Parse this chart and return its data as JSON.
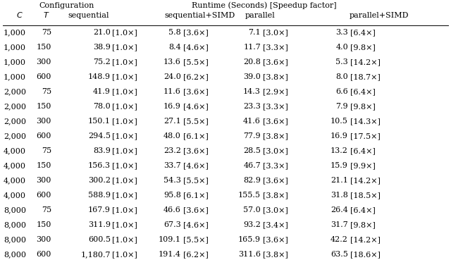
{
  "col_header1": "Configuration",
  "col_header2": "Runtime (Seconds) [Speedup factor]",
  "subheaders_italic": [
    "C",
    "T"
  ],
  "subheaders_normal": [
    "sequential",
    "sequential+SIMD",
    "parallel",
    "parallel+SIMD"
  ],
  "rows": [
    [
      "1,000",
      "75",
      "21.0",
      "1.0×",
      "5.8",
      "3.6×",
      "7.1",
      "3.0×",
      "3.3",
      "6.4×"
    ],
    [
      "1,000",
      "150",
      "38.9",
      "1.0×",
      "8.4",
      "4.6×",
      "11.7",
      "3.3×",
      "4.0",
      "9.8×"
    ],
    [
      "1,000",
      "300",
      "75.2",
      "1.0×",
      "13.6",
      "5.5×",
      "20.8",
      "3.6×",
      "5.3",
      "14.2×"
    ],
    [
      "1,000",
      "600",
      "148.9",
      "1.0×",
      "24.0",
      "6.2×",
      "39.0",
      "3.8×",
      "8.0",
      "18.7×"
    ],
    [
      "2,000",
      "75",
      "41.9",
      "1.0×",
      "11.6",
      "3.6×",
      "14.3",
      "2.9×",
      "6.6",
      "6.4×"
    ],
    [
      "2,000",
      "150",
      "78.0",
      "1.0×",
      "16.9",
      "4.6×",
      "23.3",
      "3.3×",
      "7.9",
      "9.8×"
    ],
    [
      "2,000",
      "300",
      "150.1",
      "1.0×",
      "27.1",
      "5.5×",
      "41.6",
      "3.6×",
      "10.5",
      "14.3×"
    ],
    [
      "2,000",
      "600",
      "294.5",
      "1.0×",
      "48.0",
      "6.1×",
      "77.9",
      "3.8×",
      "16.9",
      "17.5×"
    ],
    [
      "4,000",
      "75",
      "83.9",
      "1.0×",
      "23.2",
      "3.6×",
      "28.5",
      "3.0×",
      "13.2",
      "6.4×"
    ],
    [
      "4,000",
      "150",
      "156.3",
      "1.0×",
      "33.7",
      "4.6×",
      "46.7",
      "3.3×",
      "15.9",
      "9.9×"
    ],
    [
      "4,000",
      "300",
      "300.2",
      "1.0×",
      "54.3",
      "5.5×",
      "82.9",
      "3.6×",
      "21.1",
      "14.2×"
    ],
    [
      "4,000",
      "600",
      "588.9",
      "1.0×",
      "95.8",
      "6.1×",
      "155.5",
      "3.8×",
      "31.8",
      "18.5×"
    ],
    [
      "8,000",
      "75",
      "167.9",
      "1.0×",
      "46.6",
      "3.6×",
      "57.0",
      "3.0×",
      "26.4",
      "6.4×"
    ],
    [
      "8,000",
      "150",
      "311.9",
      "1.0×",
      "67.3",
      "4.6×",
      "93.2",
      "3.4×",
      "31.7",
      "9.8×"
    ],
    [
      "8,000",
      "300",
      "600.5",
      "1.0×",
      "109.1",
      "5.5×",
      "165.9",
      "3.6×",
      "42.2",
      "14.2×"
    ],
    [
      "8,000",
      "600",
      "1,180.7",
      "1.0×",
      "191.4",
      "6.2×",
      "311.6",
      "3.8×",
      "63.5",
      "18.6×"
    ]
  ],
  "bg_color": "#ffffff",
  "text_color": "#000000",
  "line_color": "#000000",
  "font_size": 8.0,
  "header_font_size": 8.0
}
